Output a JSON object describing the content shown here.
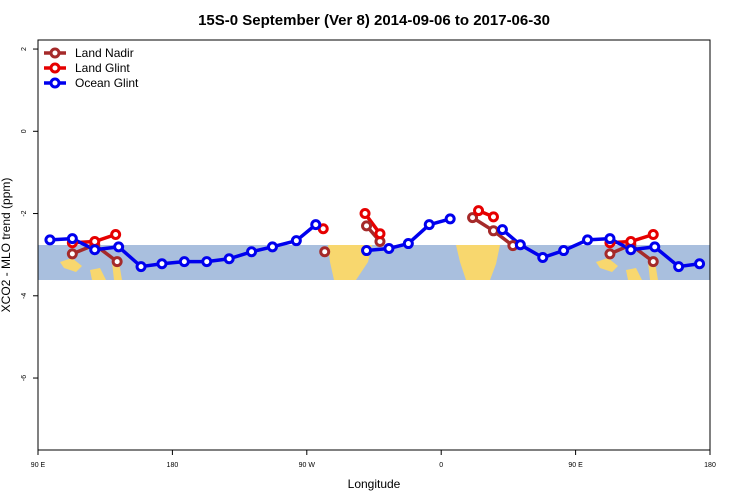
{
  "chart_data": {
    "type": "line",
    "title": "15S-0 September (Ver 8)   2014-09-06 to 2017-06-30",
    "x_label": "Longitude",
    "y_label": "XCO2 - MLO trend (ppm)",
    "xlim": [
      90,
      540
    ],
    "xticks": [
      {
        "value": 90,
        "label": "90 E"
      },
      180,
      {
        "value": 270,
        "label": "90 W"
      },
      {
        "value": 360,
        "label": "0"
      },
      {
        "value": 450,
        "label": "90 E"
      },
      {
        "value": 540,
        "label": "180"
      }
    ],
    "ylim": [
      -7.75,
      2.22
    ],
    "yticks": [
      2,
      0,
      -2,
      -4,
      -6
    ],
    "legend": "top-left",
    "series": [
      {
        "name": "Land Nadir",
        "color": "#a52a2a",
        "x": [
          113,
          128,
          143,
          212,
          282,
          296,
          310,
          319,
          350,
          381,
          395,
          408,
          440,
          473,
          487,
          502
        ],
        "values": [
          -2.98,
          -2.76,
          -3.17,
          null,
          -2.93,
          null,
          -2.3,
          -2.68,
          null,
          -2.1,
          -2.42,
          -2.78,
          null,
          -2.98,
          -2.76,
          -3.17
        ]
      },
      {
        "name": "Land Glint",
        "color": "#e60000",
        "x": [
          113,
          128,
          142,
          212,
          281,
          295,
          309,
          319,
          352,
          385,
          395,
          434,
          473,
          487,
          502
        ],
        "values": [
          -2.71,
          -2.68,
          -2.51,
          null,
          -2.37,
          null,
          -2.0,
          -2.49,
          null,
          -1.93,
          -2.08,
          null,
          -2.71,
          -2.68,
          -2.51
        ]
      },
      {
        "name": "Ocean Glint",
        "color": "#0000ee",
        "x": [
          98,
          113,
          128,
          144,
          159,
          173,
          188,
          203,
          218,
          233,
          247,
          263,
          276,
          293,
          310,
          325,
          338,
          352,
          366,
          384,
          401,
          413,
          428,
          442,
          458,
          473,
          487,
          503,
          519,
          533
        ],
        "values": [
          -2.64,
          -2.61,
          -2.88,
          -2.81,
          -3.29,
          -3.22,
          -3.17,
          -3.17,
          -3.1,
          -2.93,
          -2.81,
          -2.66,
          -2.27,
          null,
          -2.9,
          -2.85,
          -2.73,
          -2.27,
          -2.13,
          null,
          -2.39,
          -2.76,
          -3.07,
          -2.9,
          -2.64,
          -2.61,
          -2.88,
          -2.81,
          -3.29,
          -3.22
        ]
      }
    ]
  }
}
